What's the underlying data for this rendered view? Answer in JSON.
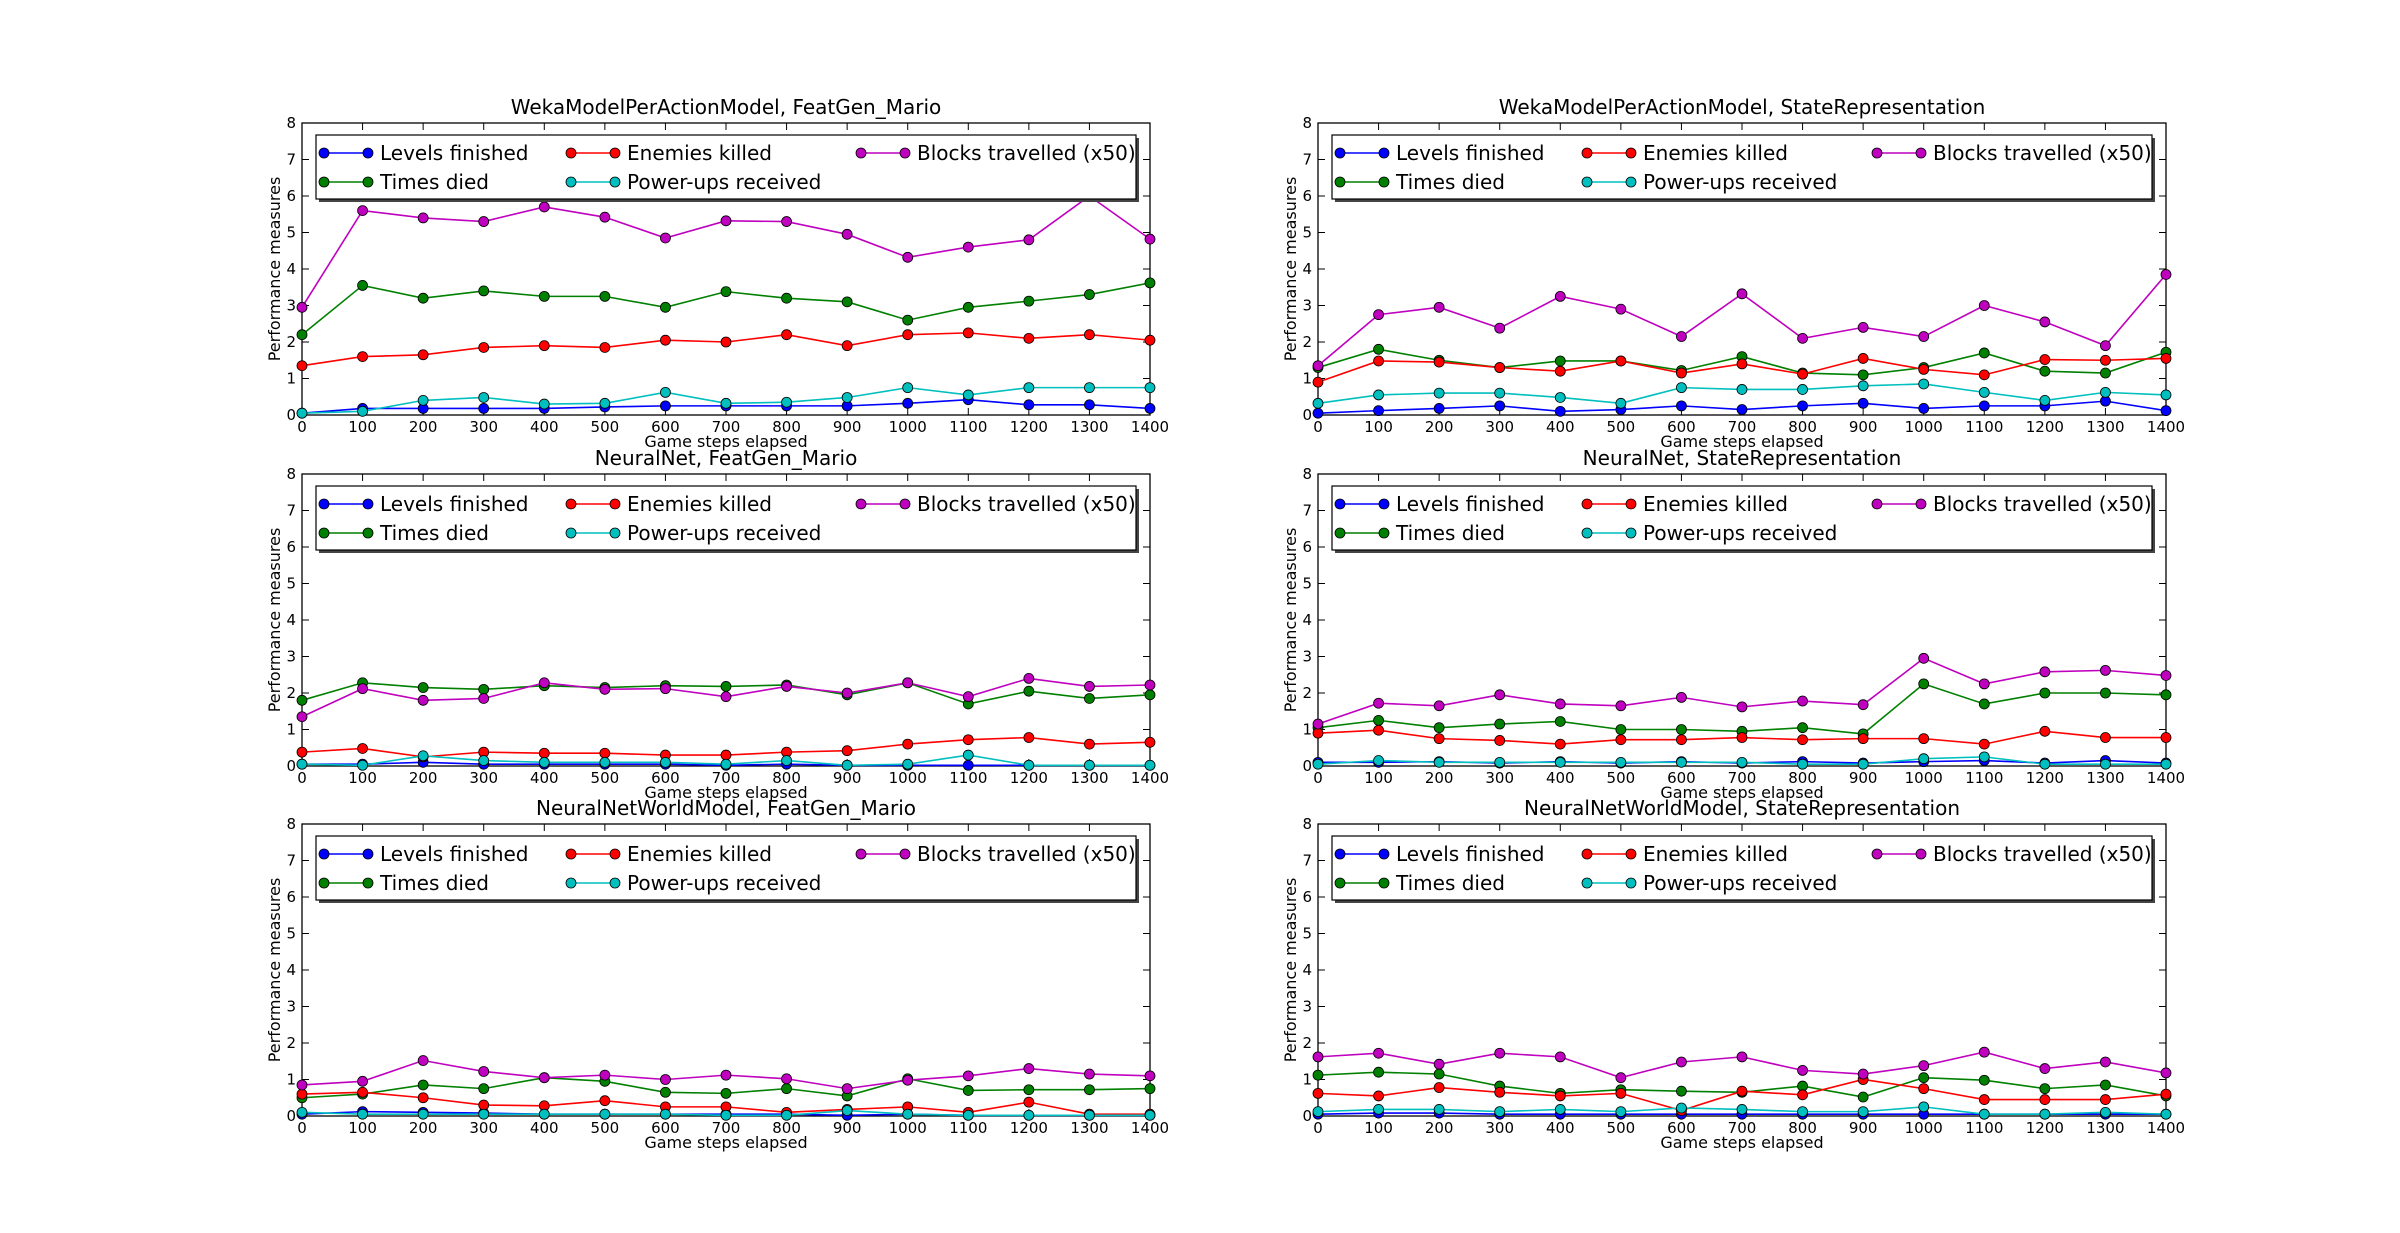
{
  "xlabel": "Game steps elapsed",
  "ylabel": "Performance measures",
  "legend": {
    "entries": [
      {
        "name": "Levels finished",
        "color": "#0000ff"
      },
      {
        "name": "Times died",
        "color": "#008000"
      },
      {
        "name": "Enemies killed",
        "color": "#ff0000"
      },
      {
        "name": "Power-ups received",
        "color": "#00bfbf"
      },
      {
        "name": "Blocks travelled (x50)",
        "color": "#bf00bf"
      }
    ],
    "placement": "top"
  },
  "chart_data": [
    {
      "type": "line",
      "title": "WekaModelPerActionModel, FeatGen_Mario",
      "xlabel": "Game steps elapsed",
      "ylabel": "Performance measures",
      "x": [
        0,
        100,
        200,
        300,
        400,
        500,
        600,
        700,
        800,
        900,
        1000,
        1100,
        1200,
        1300,
        1400
      ],
      "xlim": [
        0,
        1400
      ],
      "ylim": [
        0,
        8
      ],
      "series": [
        {
          "name": "Levels finished",
          "values": [
            0.05,
            0.18,
            0.18,
            0.18,
            0.18,
            0.22,
            0.25,
            0.25,
            0.25,
            0.25,
            0.32,
            0.42,
            0.28,
            0.28,
            0.18
          ]
        },
        {
          "name": "Times died",
          "values": [
            2.2,
            3.55,
            3.2,
            3.4,
            3.25,
            3.25,
            2.95,
            3.38,
            3.2,
            3.1,
            2.6,
            2.95,
            3.12,
            3.3,
            3.62
          ]
        },
        {
          "name": "Enemies killed",
          "values": [
            1.35,
            1.6,
            1.65,
            1.85,
            1.9,
            1.85,
            2.05,
            2.0,
            2.2,
            1.9,
            2.2,
            2.25,
            2.1,
            2.2,
            2.05
          ]
        },
        {
          "name": "Power-ups received",
          "values": [
            0.05,
            0.1,
            0.4,
            0.48,
            0.3,
            0.32,
            0.62,
            0.32,
            0.35,
            0.48,
            0.75,
            0.55,
            0.75,
            0.75,
            0.75
          ]
        },
        {
          "name": "Blocks travelled (x50)",
          "values": [
            2.95,
            5.6,
            5.4,
            5.3,
            5.7,
            5.42,
            4.85,
            5.32,
            5.3,
            4.95,
            4.32,
            4.6,
            4.8,
            6.0,
            4.82
          ]
        }
      ]
    },
    {
      "type": "line",
      "title": "WekaModelPerActionModel, StateRepresentation",
      "xlabel": "Game steps elapsed",
      "ylabel": "Performance measures",
      "x": [
        0,
        100,
        200,
        300,
        400,
        500,
        600,
        700,
        800,
        900,
        1000,
        1100,
        1200,
        1300,
        1400
      ],
      "xlim": [
        0,
        1400
      ],
      "ylim": [
        0,
        8
      ],
      "series": [
        {
          "name": "Levels finished",
          "values": [
            0.05,
            0.12,
            0.18,
            0.25,
            0.1,
            0.15,
            0.25,
            0.15,
            0.25,
            0.32,
            0.18,
            0.25,
            0.25,
            0.38,
            0.12
          ]
        },
        {
          "name": "Times died",
          "values": [
            1.3,
            1.8,
            1.5,
            1.3,
            1.48,
            1.48,
            1.22,
            1.6,
            1.15,
            1.1,
            1.3,
            1.7,
            1.2,
            1.15,
            1.72
          ]
        },
        {
          "name": "Enemies killed",
          "values": [
            0.9,
            1.48,
            1.45,
            1.3,
            1.2,
            1.48,
            1.15,
            1.4,
            1.12,
            1.55,
            1.25,
            1.1,
            1.52,
            1.5,
            1.55
          ]
        },
        {
          "name": "Power-ups received",
          "values": [
            0.32,
            0.55,
            0.6,
            0.6,
            0.48,
            0.32,
            0.75,
            0.7,
            0.7,
            0.8,
            0.85,
            0.62,
            0.4,
            0.62,
            0.55
          ]
        },
        {
          "name": "Blocks travelled (x50)",
          "values": [
            1.35,
            2.75,
            2.95,
            2.38,
            3.25,
            2.9,
            2.15,
            3.32,
            2.1,
            2.4,
            2.15,
            3.0,
            2.55,
            1.9,
            3.85
          ]
        }
      ]
    },
    {
      "type": "line",
      "title": "NeuralNet, FeatGen_Mario",
      "xlabel": "Game steps elapsed",
      "ylabel": "Performance measures",
      "x": [
        0,
        100,
        200,
        300,
        400,
        500,
        600,
        700,
        800,
        900,
        1000,
        1100,
        1200,
        1300,
        1400
      ],
      "xlim": [
        0,
        1400
      ],
      "ylim": [
        0,
        8
      ],
      "series": [
        {
          "name": "Levels finished",
          "values": [
            0.05,
            0.05,
            0.1,
            0.05,
            0.05,
            0.05,
            0.05,
            0.02,
            0.05,
            0.02,
            0.02,
            0.02,
            0.02,
            0.02,
            0.02
          ]
        },
        {
          "name": "Times died",
          "values": [
            1.8,
            2.28,
            2.15,
            2.1,
            2.2,
            2.15,
            2.2,
            2.18,
            2.22,
            1.95,
            2.28,
            1.7,
            2.05,
            1.85,
            1.95
          ]
        },
        {
          "name": "Enemies killed",
          "values": [
            0.38,
            0.48,
            0.25,
            0.38,
            0.35,
            0.35,
            0.3,
            0.3,
            0.38,
            0.42,
            0.6,
            0.72,
            0.78,
            0.6,
            0.65
          ]
        },
        {
          "name": "Power-ups received",
          "values": [
            0.05,
            0.02,
            0.28,
            0.15,
            0.1,
            0.1,
            0.1,
            0.05,
            0.15,
            0.02,
            0.05,
            0.3,
            0.02,
            0.02,
            0.02
          ]
        },
        {
          "name": "Blocks travelled (x50)",
          "values": [
            1.35,
            2.12,
            1.8,
            1.85,
            2.28,
            2.1,
            2.12,
            1.9,
            2.18,
            2.0,
            2.28,
            1.9,
            2.4,
            2.18,
            2.22
          ]
        }
      ]
    },
    {
      "type": "line",
      "title": "NeuralNet, StateRepresentation",
      "xlabel": "Game steps elapsed",
      "ylabel": "Performance measures",
      "x": [
        0,
        100,
        200,
        300,
        400,
        500,
        600,
        700,
        800,
        900,
        1000,
        1100,
        1200,
        1300,
        1400
      ],
      "xlim": [
        0,
        1400
      ],
      "ylim": [
        0,
        8
      ],
      "series": [
        {
          "name": "Levels finished",
          "values": [
            0.1,
            0.1,
            0.12,
            0.08,
            0.12,
            0.08,
            0.12,
            0.08,
            0.12,
            0.08,
            0.12,
            0.15,
            0.08,
            0.15,
            0.08
          ]
        },
        {
          "name": "Times died",
          "values": [
            1.05,
            1.25,
            1.05,
            1.15,
            1.22,
            1.0,
            1.0,
            0.95,
            1.05,
            0.88,
            2.25,
            1.7,
            2.0,
            2.0,
            1.95
          ]
        },
        {
          "name": "Enemies killed",
          "values": [
            0.9,
            0.98,
            0.75,
            0.7,
            0.6,
            0.72,
            0.72,
            0.78,
            0.72,
            0.75,
            0.75,
            0.6,
            0.95,
            0.78,
            0.78
          ]
        },
        {
          "name": "Power-ups received",
          "values": [
            0.05,
            0.15,
            0.1,
            0.1,
            0.1,
            0.1,
            0.1,
            0.1,
            0.05,
            0.05,
            0.2,
            0.25,
            0.05,
            0.05,
            0.05
          ]
        },
        {
          "name": "Blocks travelled (x50)",
          "values": [
            1.15,
            1.72,
            1.65,
            1.95,
            1.7,
            1.65,
            1.88,
            1.62,
            1.78,
            1.68,
            2.95,
            2.25,
            2.58,
            2.62,
            2.48
          ]
        }
      ]
    },
    {
      "type": "line",
      "title": "NeuralNetWorldModel, FeatGen_Mario",
      "xlabel": "Game steps elapsed",
      "ylabel": "Performance measures",
      "x": [
        0,
        100,
        200,
        300,
        400,
        500,
        600,
        700,
        800,
        900,
        1000,
        1100,
        1200,
        1300,
        1400
      ],
      "xlim": [
        0,
        1400
      ],
      "ylim": [
        0,
        8
      ],
      "series": [
        {
          "name": "Levels finished",
          "values": [
            0.05,
            0.12,
            0.1,
            0.08,
            0.05,
            0.05,
            0.05,
            0.05,
            0.05,
            0.02,
            0.05,
            0.02,
            0.02,
            0.02,
            0.02
          ]
        },
        {
          "name": "Times died",
          "values": [
            0.5,
            0.6,
            0.85,
            0.75,
            1.05,
            0.95,
            0.65,
            0.62,
            0.75,
            0.55,
            1.02,
            0.7,
            0.72,
            0.72,
            0.75
          ]
        },
        {
          "name": "Enemies killed",
          "values": [
            0.6,
            0.65,
            0.5,
            0.3,
            0.28,
            0.42,
            0.25,
            0.25,
            0.1,
            0.18,
            0.25,
            0.1,
            0.38,
            0.05,
            0.05
          ]
        },
        {
          "name": "Power-ups received",
          "values": [
            0.1,
            0.05,
            0.05,
            0.05,
            0.05,
            0.05,
            0.05,
            0.02,
            0.02,
            0.15,
            0.05,
            0.02,
            0.02,
            0.02,
            0.02
          ]
        },
        {
          "name": "Blocks travelled (x50)",
          "values": [
            0.85,
            0.95,
            1.52,
            1.22,
            1.05,
            1.12,
            1.0,
            1.12,
            1.02,
            0.75,
            0.98,
            1.1,
            1.3,
            1.15,
            1.1
          ]
        }
      ]
    },
    {
      "type": "line",
      "title": "NeuralNetWorldModel, StateRepresentation",
      "xlabel": "Game steps elapsed",
      "ylabel": "Performance measures",
      "x": [
        0,
        100,
        200,
        300,
        400,
        500,
        600,
        700,
        800,
        900,
        1000,
        1100,
        1200,
        1300,
        1400
      ],
      "xlim": [
        0,
        1400
      ],
      "ylim": [
        0,
        8
      ],
      "series": [
        {
          "name": "Levels finished",
          "values": [
            0.05,
            0.08,
            0.08,
            0.05,
            0.05,
            0.05,
            0.05,
            0.05,
            0.05,
            0.05,
            0.05,
            0.05,
            0.05,
            0.05,
            0.05
          ]
        },
        {
          "name": "Times died",
          "values": [
            1.12,
            1.2,
            1.15,
            0.82,
            0.62,
            0.72,
            0.68,
            0.65,
            0.82,
            0.52,
            1.05,
            0.98,
            0.75,
            0.85,
            0.55
          ]
        },
        {
          "name": "Enemies killed",
          "values": [
            0.62,
            0.55,
            0.78,
            0.65,
            0.55,
            0.62,
            0.15,
            0.68,
            0.58,
            1.0,
            0.75,
            0.45,
            0.45,
            0.45,
            0.6
          ]
        },
        {
          "name": "Power-ups received",
          "values": [
            0.12,
            0.18,
            0.18,
            0.12,
            0.18,
            0.12,
            0.22,
            0.18,
            0.12,
            0.12,
            0.25,
            0.05,
            0.05,
            0.1,
            0.05
          ]
        },
        {
          "name": "Blocks travelled (x50)",
          "values": [
            1.62,
            1.72,
            1.42,
            1.72,
            1.62,
            1.05,
            1.48,
            1.62,
            1.25,
            1.15,
            1.38,
            1.75,
            1.3,
            1.48,
            1.18
          ]
        }
      ]
    }
  ]
}
